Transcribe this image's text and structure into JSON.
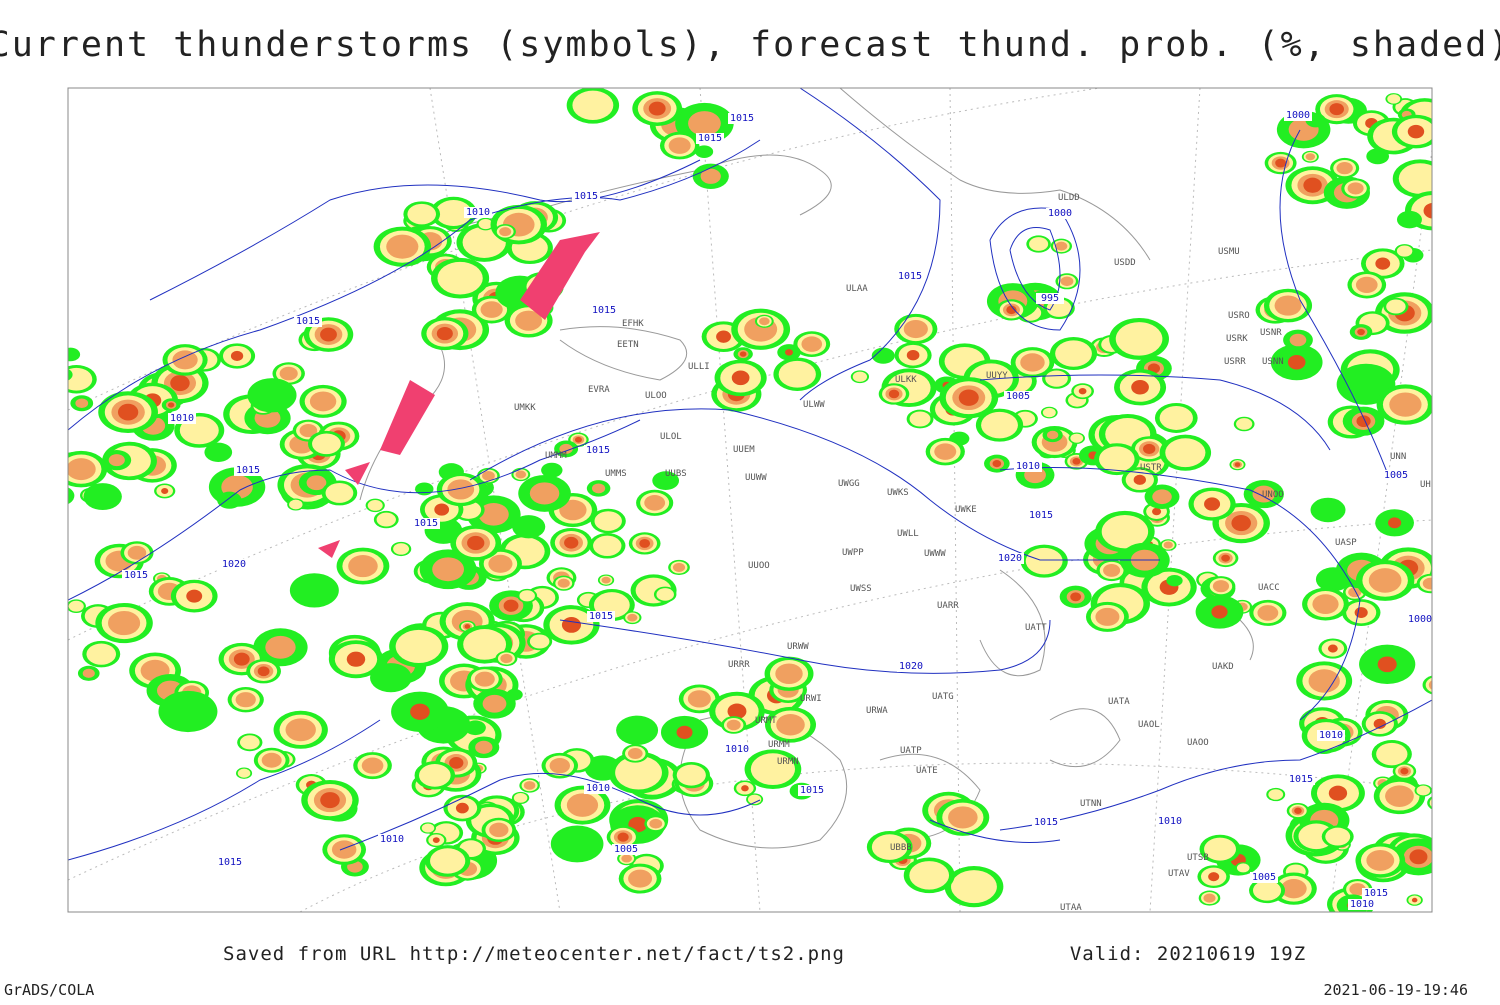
{
  "title": "Current thunderstorms (symbols), forecast thund. prob. (%, shaded)",
  "footer": {
    "source": "Saved from URL http://meteocenter.net/fact/ts2.png",
    "valid": "Valid: 20210619 19Z",
    "software": "GrADS/COLA",
    "timestamp": "2021-06-19-19:46"
  },
  "isobar_labels": [
    1015,
    1015,
    1015,
    1010,
    1015,
    1015,
    1010,
    1015,
    1015,
    1015,
    1015,
    1020,
    1015,
    1015,
    1000,
    995,
    1005,
    1010,
    1015,
    1020,
    1020,
    1010,
    1010,
    1015,
    1010,
    1005,
    1015,
    1010,
    1015,
    1000,
    1010,
    1015,
    1005,
    1015,
    1010,
    1005,
    1000
  ],
  "stations": [
    "ULDD",
    "USMU",
    "USDD",
    "ULAA",
    "USRO",
    "USRK",
    "USNR",
    "USRR",
    "USNN",
    "UUYY",
    "ULKK",
    "ULWW",
    "UMKK",
    "ULOL",
    "UUEM",
    "UUWW",
    "UWGG",
    "UWKS",
    "UWKE",
    "UWLL",
    "UWWW",
    "UWPP",
    "UUOO",
    "UWSS",
    "UARR",
    "URWW",
    "UATT",
    "UAKD",
    "URRR",
    "URWI",
    "UATG",
    "URWA",
    "UATA",
    "UAOL",
    "UAOO",
    "URMT",
    "URMM",
    "URMN",
    "UATP",
    "UATE",
    "UTNN",
    "UBBB",
    "UTSB",
    "UTAA",
    "EFHK",
    "EETN",
    "EVRA",
    "UMMS",
    "UUBS",
    "ULLI",
    "ULOO",
    "UMMM",
    "USTR",
    "UNOO",
    "UASP",
    "UACC",
    "UNN",
    "UHBB",
    "UTAV"
  ]
}
